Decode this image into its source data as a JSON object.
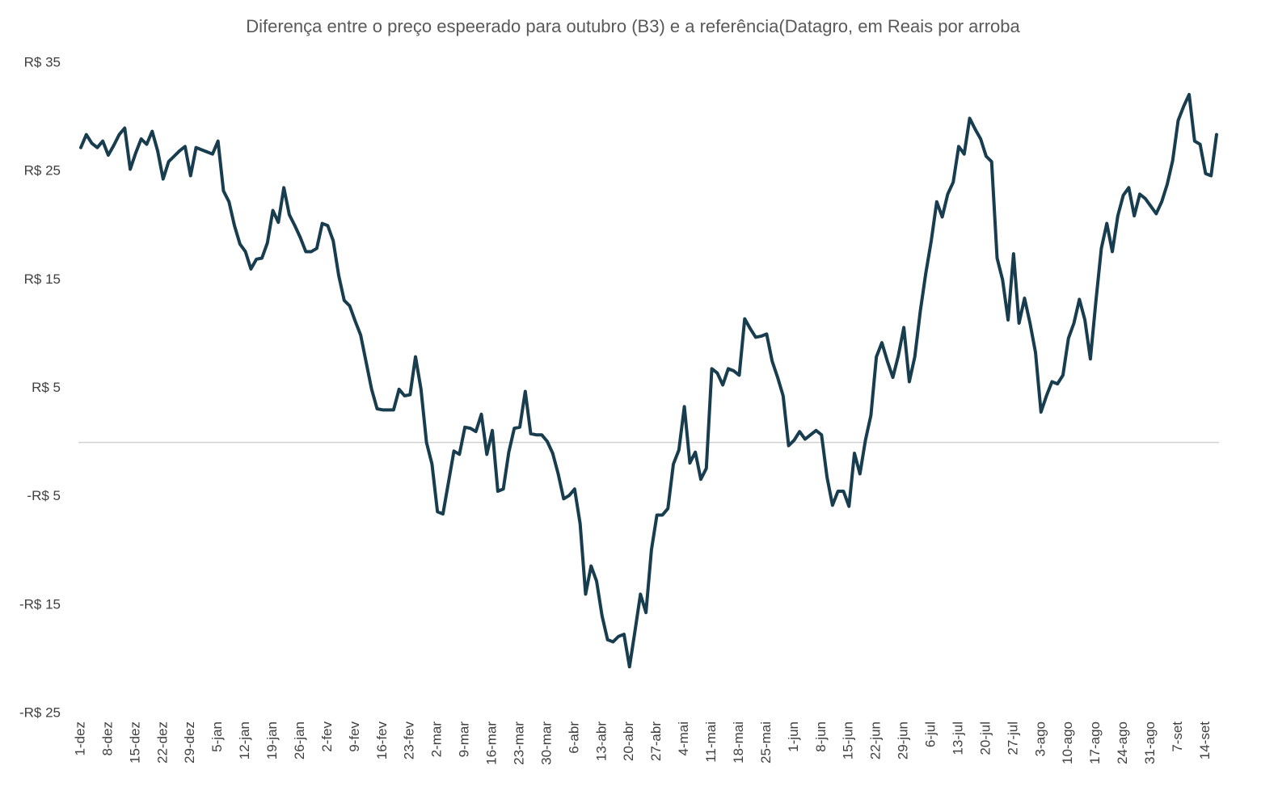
{
  "chart_data": {
    "type": "line",
    "title": "Diferença entre o preço espeerado para outubro (B3) e a referência(Datagro, em Reais por arroba",
    "categories": [
      "1-dez",
      null,
      null,
      null,
      null,
      "8-dez",
      null,
      null,
      null,
      null,
      "15-dez",
      null,
      null,
      null,
      null,
      "22-dez",
      null,
      null,
      null,
      null,
      "29-dez",
      null,
      null,
      null,
      null,
      "5-jan",
      null,
      null,
      null,
      null,
      "12-jan",
      null,
      null,
      null,
      null,
      "19-jan",
      null,
      null,
      null,
      null,
      "26-jan",
      null,
      null,
      null,
      null,
      "2-fev",
      null,
      null,
      null,
      null,
      "9-fev",
      null,
      null,
      null,
      null,
      "16-fev",
      null,
      null,
      null,
      null,
      "23-fev",
      null,
      null,
      null,
      null,
      "2-mar",
      null,
      null,
      null,
      null,
      "9-mar",
      null,
      null,
      null,
      null,
      "16-mar",
      null,
      null,
      null,
      null,
      "23-mar",
      null,
      null,
      null,
      null,
      "30-mar",
      null,
      null,
      null,
      null,
      "6-abr",
      null,
      null,
      null,
      null,
      "13-abr",
      null,
      null,
      null,
      null,
      "20-abr",
      null,
      null,
      null,
      null,
      "27-abr",
      null,
      null,
      null,
      null,
      "4-mai",
      null,
      null,
      null,
      null,
      "11-mai",
      null,
      null,
      null,
      null,
      "18-mai",
      null,
      null,
      null,
      null,
      "25-mai",
      null,
      null,
      null,
      null,
      "1-jun",
      null,
      null,
      null,
      null,
      "8-jun",
      null,
      null,
      null,
      null,
      "15-jun",
      null,
      null,
      null,
      null,
      "22-jun",
      null,
      null,
      null,
      null,
      "29-jun",
      null,
      null,
      null,
      null,
      "6-jul",
      null,
      null,
      null,
      null,
      "13-jul",
      null,
      null,
      null,
      null,
      "20-jul",
      null,
      null,
      null,
      null,
      "27-jul",
      null,
      null,
      null,
      null,
      "3-ago",
      null,
      null,
      null,
      null,
      "10-ago",
      null,
      null,
      null,
      null,
      "17-ago",
      null,
      null,
      null,
      null,
      "24-ago",
      null,
      null,
      null,
      null,
      "31-ago",
      null,
      null,
      null,
      null,
      "7-set",
      null,
      null,
      null,
      null,
      "14-set",
      null,
      null
    ],
    "series": [
      {
        "color": "#173d4f",
        "values": [
          27.2,
          28.4,
          27.6,
          27.2,
          27.8,
          26.5,
          27.4,
          28.4,
          29.0,
          25.2,
          26.7,
          28.0,
          27.5,
          28.7,
          26.9,
          24.3,
          25.9,
          26.4,
          26.9,
          27.3,
          24.6,
          27.2,
          27.0,
          26.8,
          26.6,
          27.8,
          23.2,
          22.2,
          20.0,
          18.3,
          17.6,
          16.0,
          16.9,
          17.0,
          18.4,
          21.4,
          20.3,
          23.5,
          21.0,
          20.0,
          18.9,
          17.6,
          17.6,
          17.9,
          20.2,
          20.0,
          18.6,
          15.4,
          13.1,
          12.6,
          11.2,
          9.9,
          7.4,
          4.9,
          3.1,
          3.0,
          3.0,
          3.0,
          4.9,
          4.3,
          4.4,
          7.9,
          4.9,
          0.0,
          -2.0,
          -6.4,
          -6.6,
          -3.7,
          -0.8,
          -1.1,
          1.4,
          1.3,
          1.0,
          2.6,
          -1.1,
          1.1,
          -4.5,
          -4.3,
          -0.9,
          1.3,
          1.4,
          4.7,
          0.8,
          0.7,
          0.7,
          0.1,
          -1.0,
          -2.9,
          -5.2,
          -4.9,
          -4.3,
          -7.5,
          -14.0,
          -11.4,
          -12.8,
          -16.0,
          -18.2,
          -18.4,
          -17.9,
          -17.7,
          -20.7,
          -17.4,
          -14.0,
          -15.7,
          -9.9,
          -6.7,
          -6.7,
          -6.1,
          -2.0,
          -0.7,
          3.3,
          -1.9,
          -0.9,
          -3.4,
          -2.4,
          6.8,
          6.4,
          5.3,
          6.8,
          6.6,
          6.2,
          11.4,
          10.5,
          9.7,
          9.8,
          10.0,
          7.5,
          6.0,
          4.3,
          -0.3,
          0.2,
          1.0,
          0.3,
          0.7,
          1.1,
          0.7,
          -3.2,
          -5.8,
          -4.5,
          -4.5,
          -5.9,
          -1.0,
          -2.9,
          0.2,
          2.5,
          7.9,
          9.2,
          7.5,
          6.0,
          8.0,
          10.6,
          5.6,
          7.9,
          12.1,
          15.6,
          18.6,
          22.2,
          20.8,
          22.9,
          24.0,
          27.3,
          26.6,
          29.9,
          28.9,
          28.0,
          26.4,
          25.9,
          17.0,
          15.0,
          11.3,
          17.4,
          11.0,
          13.3,
          11.0,
          8.3,
          2.8,
          4.3,
          5.6,
          5.4,
          6.2,
          9.6,
          11.0,
          13.2,
          11.3,
          7.7,
          13.0,
          17.9,
          20.2,
          17.6,
          20.9,
          22.8,
          23.5,
          20.9,
          22.9,
          22.5,
          21.8,
          21.1,
          22.2,
          23.8,
          26.0,
          29.7,
          31.0,
          32.1,
          27.8,
          27.5,
          24.8,
          24.6,
          28.4
        ]
      }
    ],
    "ylim": [
      -25,
      35
    ],
    "yticks": [
      {
        "value": -25,
        "label": "-R$ 25"
      },
      {
        "value": -15,
        "label": "-R$ 15"
      },
      {
        "value": -5,
        "label": "-R$ 5"
      },
      {
        "value": 5,
        "label": "R$ 5"
      },
      {
        "value": 15,
        "label": "R$ 15"
      },
      {
        "value": 25,
        "label": "R$ 25"
      },
      {
        "value": 35,
        "label": "R$ 35"
      }
    ]
  }
}
